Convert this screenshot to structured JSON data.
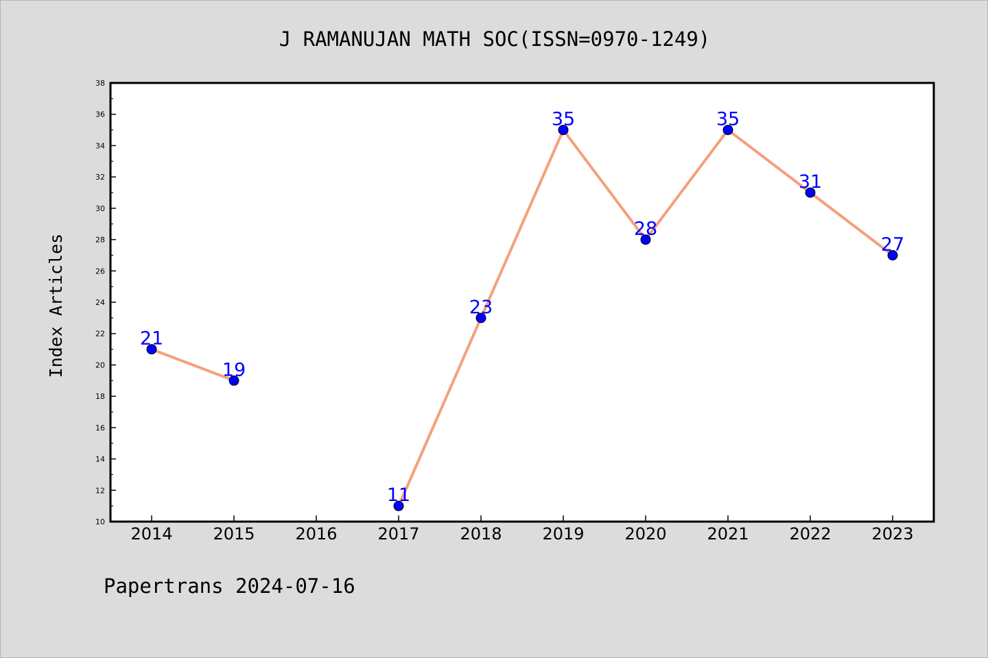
{
  "chart_data": {
    "type": "line",
    "title": "J RAMANUJAN MATH SOC(ISSN=0970-1249)",
    "ylabel": "Index Articles",
    "xlabel": "",
    "footer": "Papertrans 2024-07-16",
    "categories": [
      "2014",
      "2015",
      "2016",
      "2017",
      "2018",
      "2019",
      "2020",
      "2021",
      "2022",
      "2023"
    ],
    "values": [
      21,
      19,
      null,
      11,
      23,
      35,
      28,
      35,
      31,
      27
    ],
    "data_labels": [
      "21",
      "19",
      "",
      "11",
      "23",
      "35",
      "28",
      "35",
      "31",
      "27"
    ],
    "ylim": [
      10,
      38
    ],
    "yticks": [
      "10",
      "12",
      "14",
      "16",
      "18",
      "20",
      "22",
      "24",
      "26",
      "28",
      "30",
      "32",
      "34",
      "36",
      "38"
    ],
    "grid": false,
    "colors": {
      "background": "#dcdcdc",
      "plot_area": "#ffffff",
      "line": "#f4a07c",
      "marker": "#0000ff",
      "data_label": "#0000ff",
      "text": "#000000"
    }
  }
}
